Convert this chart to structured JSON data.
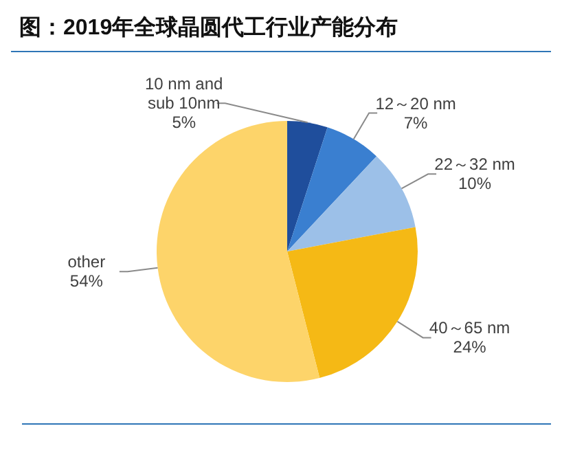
{
  "chart_data": {
    "type": "pie",
    "title": "图：2019年全球晶圆代工行业产能分布",
    "categories": [
      "10 nm and sub 10nm",
      "12～20 nm",
      "22～32 nm",
      "40～65 nm",
      "other"
    ],
    "values": [
      5,
      7,
      10,
      24,
      54
    ],
    "value_labels": [
      "5%",
      "7%",
      "10%",
      "24%",
      "54%"
    ],
    "colors": [
      "#1f4e9c",
      "#3a7fd0",
      "#9cc0e8",
      "#f5b915",
      "#fdd46a"
    ],
    "legend": false
  }
}
